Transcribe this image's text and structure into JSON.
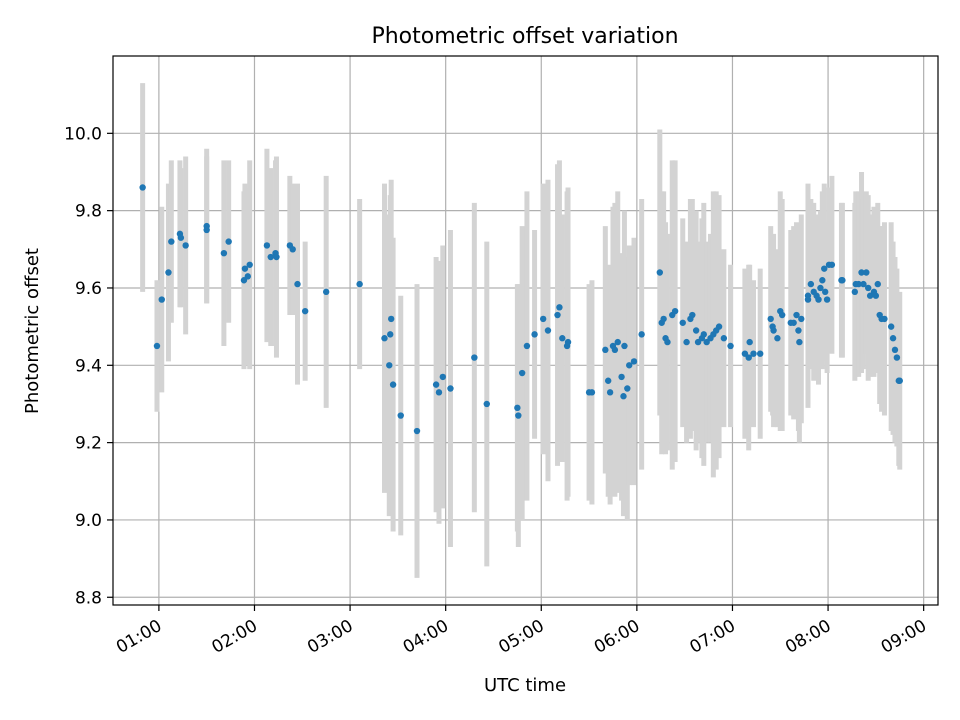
{
  "chart_data": {
    "type": "scatter",
    "title": "Photometric offset variation",
    "xlabel": "UTC time",
    "ylabel": "Photometric offset",
    "x_unit": "hours UTC",
    "xlim": [
      0.52,
      9.15
    ],
    "ylim": [
      8.78,
      10.2
    ],
    "x_ticks": [
      1,
      2,
      3,
      4,
      5,
      6,
      7,
      8,
      9
    ],
    "x_tick_labels": [
      "01:00",
      "02:00",
      "03:00",
      "04:00",
      "05:00",
      "06:00",
      "07:00",
      "08:00",
      "09:00"
    ],
    "y_ticks": [
      8.8,
      9.0,
      9.2,
      9.4,
      9.6,
      9.8,
      10.0
    ],
    "y_tick_labels": [
      "8.8",
      "9.0",
      "9.2",
      "9.4",
      "9.6",
      "9.8",
      "10.0"
    ],
    "grid": true,
    "point_color": "#1f77b4",
    "errorbar_color": "#d3d3d3",
    "series": [
      {
        "x": [
          0.83,
          0.98,
          1.03,
          1.1,
          1.13,
          1.22,
          1.23,
          1.28,
          1.5,
          1.5,
          1.68,
          1.73,
          1.89,
          1.9,
          1.93,
          1.95,
          2.13,
          2.17,
          2.22,
          2.23,
          2.37,
          2.4,
          2.45,
          2.53,
          2.75,
          3.1,
          3.36,
          3.41,
          3.42,
          3.43,
          3.45,
          3.53,
          3.7,
          3.9,
          3.93,
          3.97,
          4.05,
          4.3,
          4.43,
          4.75,
          4.76,
          4.8,
          4.85,
          4.93,
          5.02,
          5.07,
          5.17,
          5.19,
          5.22,
          5.27,
          5.28,
          5.5,
          5.53,
          5.67,
          5.7,
          5.72,
          5.75,
          5.77,
          5.8,
          5.84,
          5.86,
          5.87,
          5.9,
          5.92,
          5.97,
          6.05,
          6.24,
          6.26,
          6.28,
          6.3,
          6.32,
          6.37,
          6.4,
          6.48,
          6.52,
          6.56,
          6.58,
          6.62,
          6.64,
          6.68,
          6.7,
          6.73,
          6.77,
          6.8,
          6.83,
          6.86,
          6.91,
          6.98,
          7.13,
          7.17,
          7.18,
          7.22,
          7.29,
          7.4,
          7.42,
          7.43,
          7.47,
          7.5,
          7.52,
          7.61,
          7.64,
          7.67,
          7.69,
          7.7,
          7.72,
          7.79,
          7.79,
          7.82,
          7.85,
          7.88,
          7.9,
          7.92,
          7.94,
          7.96,
          7.97,
          7.99,
          8.01,
          8.04,
          8.14,
          8.15,
          8.28,
          8.29,
          8.32,
          8.35,
          8.37,
          8.4,
          8.42,
          8.44,
          8.48,
          8.5,
          8.52,
          8.54,
          8.56,
          8.59,
          8.66,
          8.68,
          8.7,
          8.72,
          8.74,
          8.75
        ],
        "y": [
          9.86,
          9.45,
          9.57,
          9.64,
          9.72,
          9.74,
          9.73,
          9.71,
          9.75,
          9.76,
          9.69,
          9.72,
          9.62,
          9.65,
          9.63,
          9.66,
          9.71,
          9.68,
          9.69,
          9.68,
          9.71,
          9.7,
          9.61,
          9.54,
          9.59,
          9.61,
          9.47,
          9.4,
          9.48,
          9.52,
          9.35,
          9.27,
          9.23,
          9.35,
          9.33,
          9.37,
          9.34,
          9.42,
          9.3,
          9.29,
          9.27,
          9.38,
          9.45,
          9.48,
          9.52,
          9.49,
          9.53,
          9.55,
          9.47,
          9.45,
          9.46,
          9.33,
          9.33,
          9.44,
          9.36,
          9.33,
          9.45,
          9.44,
          9.46,
          9.37,
          9.32,
          9.45,
          9.34,
          9.4,
          9.41,
          9.48,
          9.64,
          9.51,
          9.52,
          9.47,
          9.46,
          9.53,
          9.54,
          9.51,
          9.46,
          9.52,
          9.53,
          9.49,
          9.46,
          9.47,
          9.48,
          9.46,
          9.47,
          9.48,
          9.49,
          9.5,
          9.47,
          9.45,
          9.43,
          9.42,
          9.46,
          9.43,
          9.43,
          9.52,
          9.5,
          9.49,
          9.47,
          9.54,
          9.53,
          9.51,
          9.51,
          9.53,
          9.49,
          9.46,
          9.52,
          9.58,
          9.57,
          9.61,
          9.59,
          9.58,
          9.57,
          9.6,
          9.62,
          9.65,
          9.59,
          9.57,
          9.66,
          9.66,
          9.62,
          9.62,
          9.59,
          9.61,
          9.61,
          9.64,
          9.61,
          9.64,
          9.6,
          9.58,
          9.59,
          9.58,
          9.61,
          9.53,
          9.52,
          9.52,
          9.5,
          9.47,
          9.44,
          9.42,
          9.36,
          9.36
        ],
        "yerr": [
          0.27,
          0.17,
          0.24,
          0.23,
          0.21,
          0.19,
          0.18,
          0.23,
          0.19,
          0.2,
          0.24,
          0.21,
          0.23,
          0.22,
          0.23,
          0.27,
          0.25,
          0.23,
          0.24,
          0.26,
          0.18,
          0.17,
          0.26,
          0.18,
          0.3,
          0.22,
          0.4,
          0.39,
          0.36,
          0.36,
          0.38,
          0.31,
          0.38,
          0.33,
          0.34,
          0.34,
          0.41,
          0.4,
          0.42,
          0.32,
          0.34,
          0.38,
          0.4,
          0.27,
          0.35,
          0.39,
          0.39,
          0.38,
          0.32,
          0.4,
          0.4,
          0.28,
          0.29,
          0.32,
          0.3,
          0.29,
          0.36,
          0.38,
          0.39,
          0.32,
          0.31,
          0.35,
          0.34,
          0.31,
          0.32,
          0.35,
          0.37,
          0.34,
          0.33,
          0.3,
          0.28,
          0.4,
          0.39,
          0.27,
          0.26,
          0.31,
          0.3,
          0.31,
          0.26,
          0.31,
          0.34,
          0.26,
          0.27,
          0.37,
          0.36,
          0.34,
          0.23,
          0.21,
          0.22,
          0.24,
          0.2,
          0.19,
          0.22,
          0.24,
          0.23,
          0.25,
          0.23,
          0.31,
          0.3,
          0.24,
          0.25,
          0.24,
          0.26,
          0.26,
          0.27,
          0.29,
          0.27,
          0.22,
          0.23,
          0.21,
          0.22,
          0.2,
          0.23,
          0.22,
          0.18,
          0.19,
          0.2,
          0.23,
          0.2,
          0.2,
          0.23,
          0.24,
          0.24,
          0.26,
          0.22,
          0.21,
          0.24,
          0.21,
          0.22,
          0.2,
          0.21,
          0.23,
          0.24,
          0.25,
          0.27,
          0.25,
          0.24,
          0.23,
          0.22,
          0.23
        ]
      }
    ]
  }
}
